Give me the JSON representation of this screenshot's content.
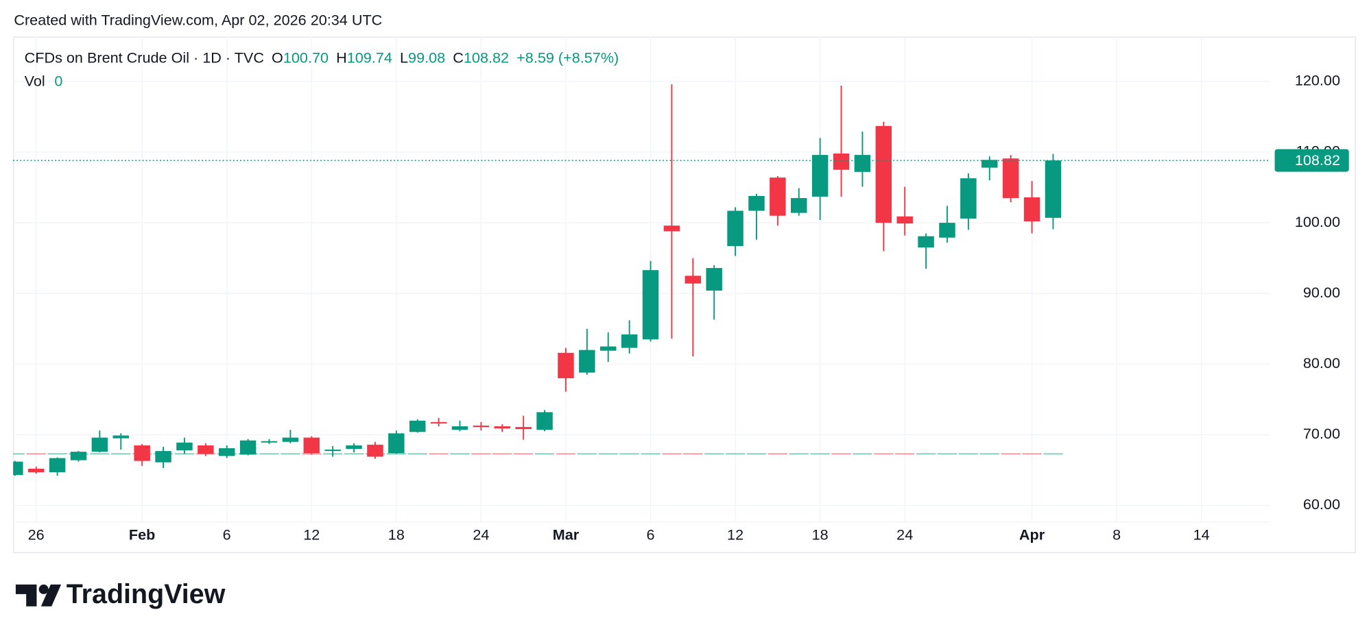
{
  "header": "Created with TradingView.com, Apr 02, 2026 20:34 UTC",
  "footer": {
    "brand": "TradingView"
  },
  "chart_data": {
    "type": "candlestick",
    "legend": {
      "symbol": "CFDs on Brent Crude Oil · 1D · TVC",
      "open_label": "O",
      "high_label": "H",
      "low_label": "L",
      "close_label": "C",
      "change": {
        "value": 8.59,
        "label": "+8.59"
      },
      "change_percent": {
        "value": 8.57,
        "label": "(+8.57%)"
      },
      "volume_label": "Vol"
    },
    "last_value_labels": {
      "open": "100.70",
      "high": "109.74",
      "low": "99.08",
      "close": "108.82"
    },
    "up_color": "#089981",
    "down_color": "#f23645",
    "categories": [
      null,
      "26",
      null,
      null,
      null,
      null,
      "Feb",
      null,
      null,
      null,
      "6",
      null,
      null,
      null,
      "12",
      null,
      null,
      null,
      "18",
      null,
      null,
      null,
      "24",
      null,
      null,
      null,
      "Mar",
      null,
      null,
      null,
      "6",
      null,
      null,
      null,
      "12",
      null,
      null,
      null,
      "18",
      null,
      null,
      null,
      "24",
      null,
      null,
      null,
      null,
      null,
      "Apr",
      null,
      null,
      null,
      "8",
      null,
      null,
      null,
      "14",
      null,
      null,
      null
    ],
    "open": [
      64.3,
      65.2,
      64.7,
      66.4,
      67.6,
      69.5,
      68.5,
      66.1,
      67.8,
      68.5,
      67.0,
      67.2,
      68.9,
      69.0,
      69.6,
      67.7,
      68.0,
      68.6,
      67.4,
      70.4,
      71.8,
      70.7,
      71.3,
      71.2,
      71.1,
      70.7,
      81.6,
      78.8,
      81.9,
      82.3,
      83.5,
      99.6,
      92.5,
      90.4,
      96.7,
      101.7,
      106.4,
      101.4,
      103.7,
      109.8,
      107.2,
      113.7,
      100.9,
      96.5,
      97.9,
      100.6,
      107.8,
      109.1,
      103.6,
      100.7,
      null,
      null,
      null,
      null,
      null,
      null,
      null,
      null,
      null,
      null
    ],
    "high": [
      66.3,
      65.5,
      66.8,
      67.7,
      70.6,
      70.2,
      68.7,
      68.3,
      69.6,
      68.8,
      68.5,
      69.4,
      69.4,
      70.7,
      69.8,
      68.4,
      68.8,
      69.0,
      70.6,
      72.2,
      72.4,
      72.0,
      71.8,
      71.5,
      72.7,
      73.5,
      82.3,
      85.0,
      84.5,
      86.2,
      94.6,
      119.6,
      95.0,
      94.0,
      102.2,
      104.1,
      106.6,
      104.9,
      112.0,
      119.4,
      112.9,
      114.3,
      105.1,
      98.5,
      102.4,
      107.0,
      109.4,
      109.6,
      105.9,
      109.74,
      null,
      null,
      null,
      null,
      null,
      null,
      null,
      null,
      null,
      null
    ],
    "low": [
      64.2,
      64.5,
      64.2,
      66.2,
      67.5,
      67.9,
      65.6,
      65.3,
      67.3,
      67.0,
      66.7,
      67.1,
      68.7,
      68.8,
      67.2,
      66.9,
      67.5,
      66.6,
      67.3,
      70.3,
      71.2,
      70.5,
      70.6,
      70.4,
      69.3,
      70.5,
      76.1,
      78.5,
      80.3,
      81.5,
      83.2,
      83.6,
      81.1,
      86.3,
      95.3,
      97.6,
      99.6,
      101.0,
      100.4,
      103.7,
      105.1,
      96.0,
      98.2,
      93.5,
      97.2,
      99.0,
      106.0,
      102.9,
      98.5,
      99.08,
      null,
      null,
      null,
      null,
      null,
      null,
      null,
      null,
      null,
      null
    ],
    "close": [
      66.2,
      64.7,
      66.7,
      67.6,
      69.6,
      69.9,
      66.3,
      67.7,
      68.9,
      67.3,
      68.1,
      69.2,
      69.1,
      69.6,
      67.4,
      67.9,
      68.5,
      66.9,
      70.2,
      72.0,
      71.6,
      71.2,
      71.1,
      70.9,
      70.8,
      73.2,
      78.0,
      82.0,
      82.5,
      84.2,
      93.3,
      98.8,
      91.4,
      93.6,
      101.7,
      103.8,
      101.0,
      103.5,
      109.6,
      107.5,
      109.6,
      100.0,
      99.9,
      98.1,
      100.0,
      106.3,
      108.9,
      103.5,
      100.2,
      108.82,
      null,
      null,
      null,
      null,
      null,
      null,
      null,
      null,
      null,
      null
    ],
    "volume": [
      0,
      0,
      0,
      0,
      0,
      0,
      0,
      0,
      0,
      0,
      0,
      0,
      0,
      0,
      0,
      0,
      0,
      0,
      0,
      0,
      0,
      0,
      0,
      0,
      0,
      0,
      0,
      0,
      0,
      0,
      0,
      0,
      0,
      0,
      0,
      0,
      0,
      0,
      0,
      0,
      0,
      0,
      0,
      0,
      0,
      0,
      0,
      0,
      0,
      0,
      null,
      null,
      null,
      null,
      null,
      null,
      null,
      null,
      null,
      null
    ],
    "ylim": [
      57.7,
      126.34
    ],
    "yticks": [
      {
        "value": 60,
        "label": "60.00"
      },
      {
        "value": 70,
        "label": "70.00"
      },
      {
        "value": 80,
        "label": "80.00"
      },
      {
        "value": 90,
        "label": "90.00"
      },
      {
        "value": 100,
        "label": "100.00"
      },
      {
        "value": 110,
        "label": "110.00"
      },
      {
        "value": 120,
        "label": "120.00"
      }
    ],
    "grid": true
  }
}
